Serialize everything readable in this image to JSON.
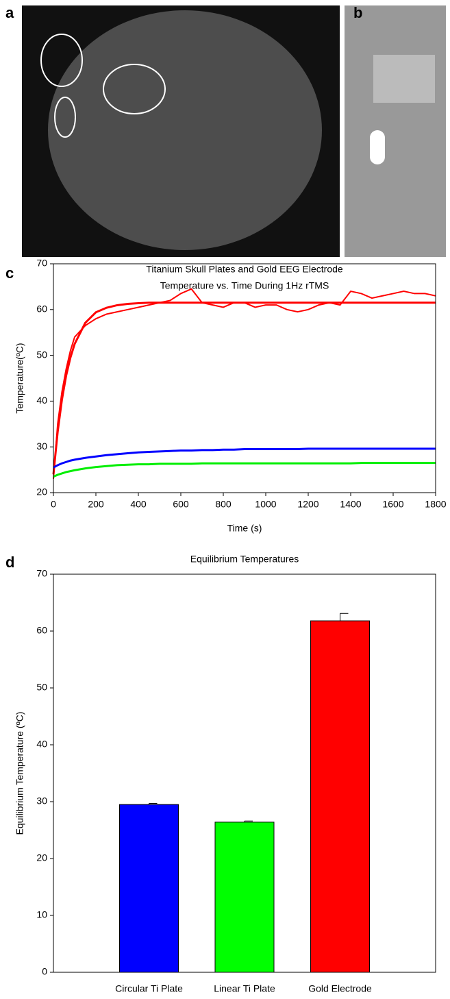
{
  "images": [
    {
      "label": "a"
    },
    {
      "label": "b"
    }
  ],
  "chart_data": [
    {
      "type": "line",
      "panel_label": "c",
      "title": "Titanium Skull Plates and Gold EEG Electrode",
      "subtitle": "Temperature vs. Time During 1Hz rTMS",
      "x_label": "Time (s)",
      "y_label": "Temperature(ºC)",
      "x": [
        0,
        20,
        40,
        60,
        80,
        100,
        150,
        200,
        250,
        300,
        350,
        400,
        450,
        500,
        550,
        600,
        650,
        700,
        750,
        800,
        850,
        900,
        950,
        1000,
        1050,
        1100,
        1150,
        1200,
        1250,
        1300,
        1350,
        1400,
        1450,
        1500,
        1550,
        1600,
        1650,
        1700,
        1750,
        1800
      ],
      "series": [
        {
          "color": "#ff0000",
          "values": [
            23,
            35,
            42,
            47,
            51,
            54,
            56.5,
            58,
            59,
            59.5,
            60,
            60.5,
            61,
            61.5,
            62,
            63.5,
            64.5,
            61.5,
            61,
            60.5,
            61.5,
            61.5,
            60.5,
            61,
            61,
            60,
            59.5,
            60,
            61,
            61.5,
            61,
            64,
            63.5,
            62.5,
            63,
            63.5,
            64,
            63.5,
            63.5,
            63
          ]
        },
        {
          "color": "#ff0000",
          "values": [
            24,
            33.3,
            40.3,
            45.6,
            49.5,
            52.5,
            57.1,
            59.4,
            60.4,
            60.95,
            61.25,
            61.4,
            61.5,
            61.5,
            61.5,
            61.5,
            61.5,
            61.5,
            61.5,
            61.5,
            61.5,
            61.5,
            61.5,
            61.5,
            61.5,
            61.5,
            61.5,
            61.5,
            61.5,
            61.5,
            61.5,
            61.5,
            61.5,
            61.5,
            61.5,
            61.5,
            61.5,
            61.5,
            61.5,
            61.5
          ]
        },
        {
          "color": "#0000ff",
          "values": [
            25.5,
            26,
            26.4,
            26.7,
            27,
            27.2,
            27.6,
            27.9,
            28.2,
            28.4,
            28.6,
            28.8,
            28.9,
            29,
            29.1,
            29.2,
            29.2,
            29.3,
            29.3,
            29.4,
            29.4,
            29.5,
            29.5,
            29.5,
            29.5,
            29.5,
            29.5,
            29.6,
            29.6,
            29.6,
            29.6,
            29.6,
            29.6,
            29.6,
            29.6,
            29.6,
            29.6,
            29.6,
            29.6,
            29.6
          ]
        },
        {
          "color": "#00ee00",
          "values": [
            23.5,
            23.9,
            24.2,
            24.5,
            24.7,
            24.9,
            25.3,
            25.6,
            25.8,
            26,
            26.1,
            26.2,
            26.2,
            26.3,
            26.3,
            26.3,
            26.3,
            26.4,
            26.4,
            26.4,
            26.4,
            26.4,
            26.4,
            26.4,
            26.4,
            26.4,
            26.4,
            26.4,
            26.4,
            26.4,
            26.4,
            26.4,
            26.5,
            26.5,
            26.5,
            26.5,
            26.5,
            26.5,
            26.5,
            26.5
          ]
        }
      ],
      "xlim": [
        0,
        1800
      ],
      "xticks": [
        0,
        200,
        400,
        600,
        800,
        1000,
        1200,
        1400,
        1600,
        1800
      ],
      "ylim": [
        20,
        70
      ],
      "yticks": [
        20,
        30,
        40,
        50,
        60,
        70
      ]
    },
    {
      "type": "bar",
      "panel_label": "d",
      "title": "Equilibrium Temperatures",
      "y_label": "Equilibrium Temperature (ºC)",
      "categories": [
        null,
        "Circular Ti Plate",
        "Linear Ti Plate",
        "Gold Electrode"
      ],
      "values": [
        null,
        29.5,
        26.4,
        61.8
      ],
      "errors": [
        null,
        0.2,
        0.2,
        1.3
      ],
      "colors": [
        null,
        "#0000ff",
        "#00ff00",
        "#ff0000"
      ],
      "ylim": [
        0,
        70
      ],
      "yticks": [
        0,
        10,
        20,
        30,
        40,
        50,
        60,
        70
      ]
    }
  ]
}
